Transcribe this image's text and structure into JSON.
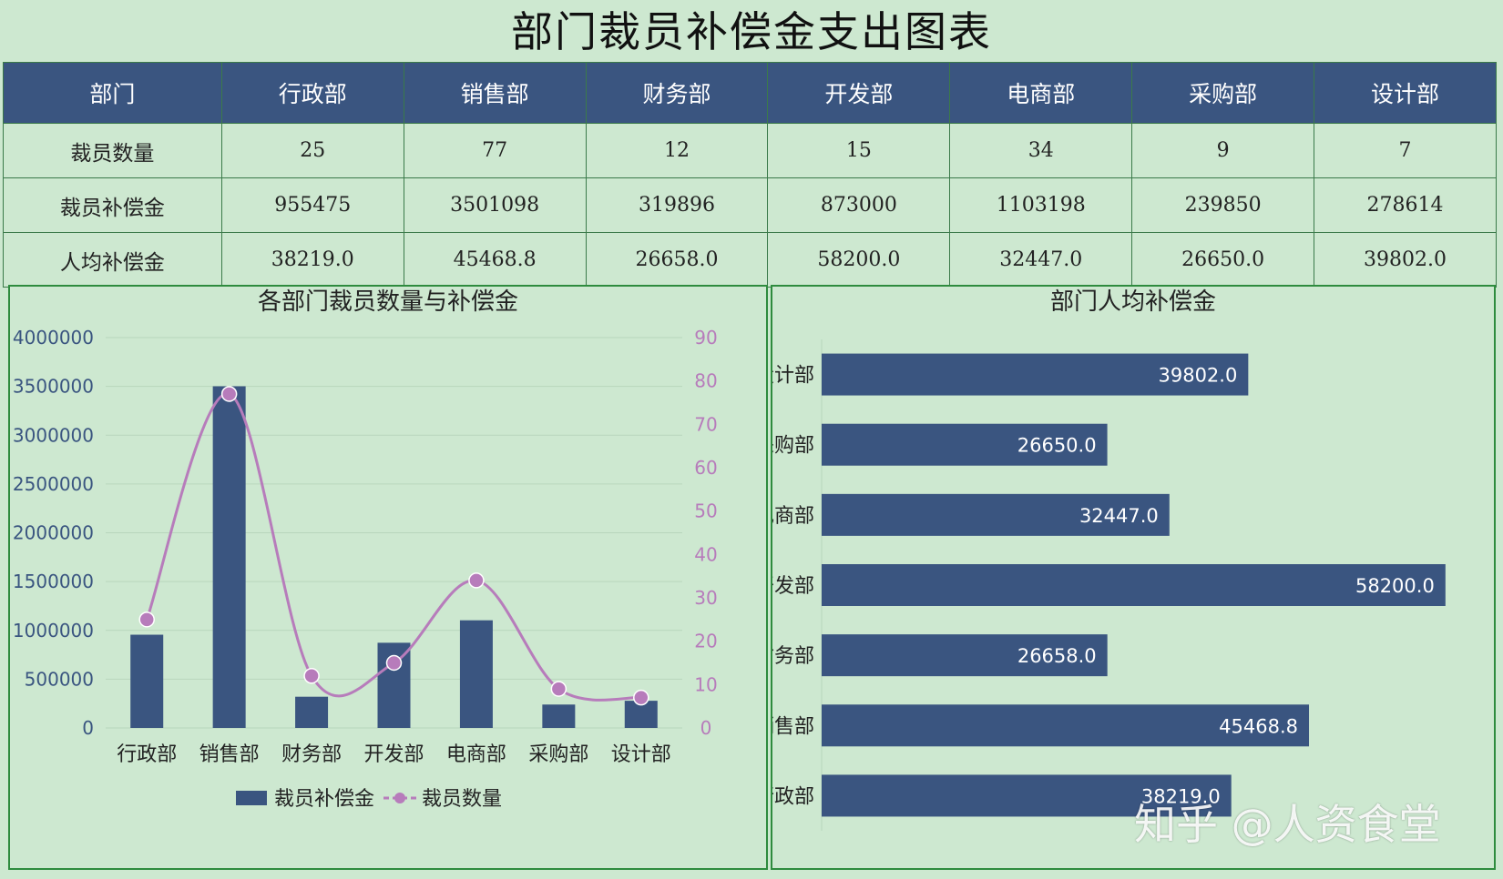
{
  "title": "部门裁员补偿金支出图表",
  "table": {
    "header_label": "部门",
    "departments": [
      "行政部",
      "销售部",
      "财务部",
      "开发部",
      "电商部",
      "采购部",
      "设计部"
    ],
    "rows": [
      {
        "label": "裁员数量",
        "values": [
          "25",
          "77",
          "12",
          "15",
          "34",
          "9",
          "7"
        ]
      },
      {
        "label": "裁员补偿金",
        "values": [
          "955475",
          "3501098",
          "319896",
          "873000",
          "1103198",
          "239850",
          "278614"
        ]
      },
      {
        "label": "人均补偿金",
        "values": [
          "38219.0",
          "45468.8",
          "26658.0",
          "58200.0",
          "32447.0",
          "26650.0",
          "39802.0"
        ]
      }
    ]
  },
  "colors": {
    "bar": "#3a5580",
    "line": "#b77cbb",
    "background": "#cde8d0",
    "grid": "#b8d6bc",
    "axis_right": "#b77cbb"
  },
  "chart_data": [
    {
      "type": "bar+line",
      "title": "各部门裁员数量与补偿金",
      "categories": [
        "行政部",
        "销售部",
        "财务部",
        "开发部",
        "电商部",
        "采购部",
        "设计部"
      ],
      "series": [
        {
          "name": "裁员补偿金",
          "type": "bar",
          "axis": "left",
          "values": [
            955475,
            3501098,
            319896,
            873000,
            1103198,
            239850,
            278614
          ]
        },
        {
          "name": "裁员数量",
          "type": "line",
          "smooth": true,
          "axis": "right",
          "values": [
            25,
            77,
            12,
            15,
            34,
            9,
            7
          ]
        }
      ],
      "y_left": {
        "min": 0,
        "max": 4000000,
        "ticks": [
          "0",
          "500000",
          "1000000",
          "1500000",
          "2000000",
          "2500000",
          "3000000",
          "3500000",
          "4000000"
        ]
      },
      "y_right": {
        "min": 0,
        "max": 90,
        "ticks": [
          "0",
          "10",
          "20",
          "30",
          "40",
          "50",
          "60",
          "70",
          "80",
          "90"
        ]
      },
      "legend": "bottom",
      "grid": true
    },
    {
      "type": "bar",
      "orientation": "horizontal",
      "title": "部门人均补偿金",
      "categories": [
        "设计部",
        "采购部",
        "电商部",
        "开发部",
        "财务部",
        "销售部",
        "行政部"
      ],
      "values": [
        39802.0,
        26650.0,
        32447.0,
        58200.0,
        26658.0,
        45468.8,
        38219.0
      ],
      "value_labels": [
        "39802.0",
        "26650.0",
        "32447.0",
        "58200.0",
        "26658.0",
        "45468.8",
        "38219.0"
      ],
      "xlim": [
        0,
        60000
      ],
      "legend": "none"
    }
  ],
  "watermark": "知乎 @人资食堂"
}
